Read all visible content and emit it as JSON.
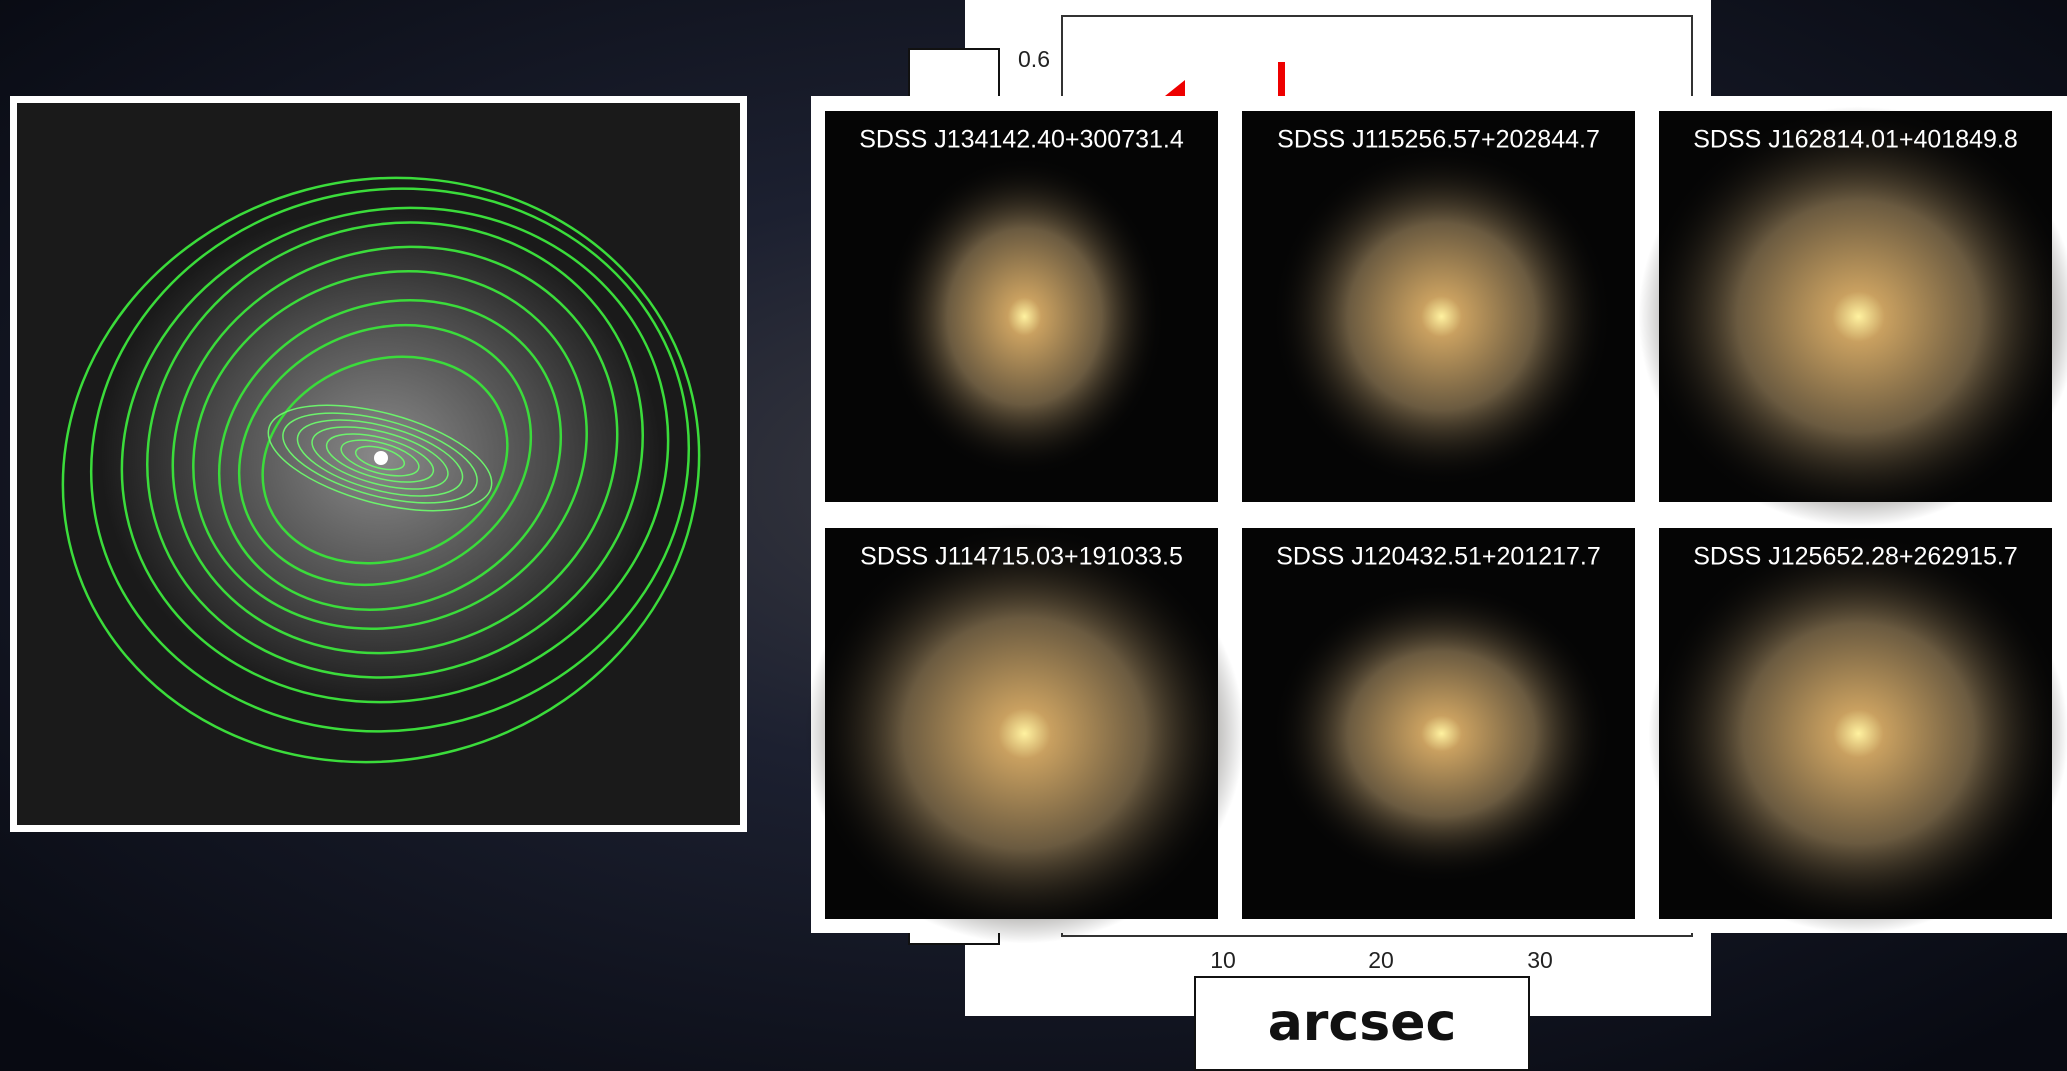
{
  "plot": {
    "yticks": [
      0.6
    ],
    "xticks": [
      10,
      20,
      30
    ],
    "xlabel": "arcsec"
  },
  "galaxies": [
    "SDSS J134142.40+300731.4",
    "SDSS J115256.57+202844.7",
    "SDSS J162814.01+401849.8",
    "SDSS J114715.03+191033.5",
    "SDSS J120432.51+201217.7",
    "SDSS J125652.28+262915.7"
  ]
}
